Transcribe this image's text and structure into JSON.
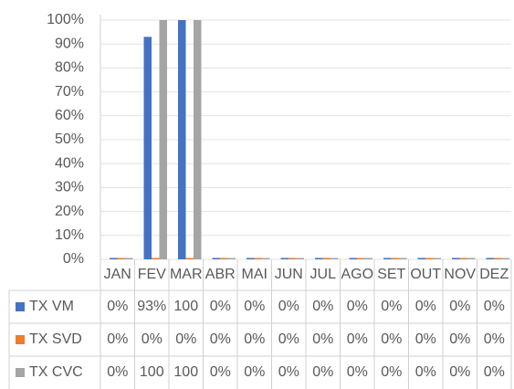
{
  "chart_data": {
    "type": "bar",
    "categories": [
      "JAN",
      "FEV",
      "MAR",
      "ABR",
      "MAI",
      "JUN",
      "JUL",
      "AGO",
      "SET",
      "OUT",
      "NOV",
      "DEZ"
    ],
    "series": [
      {
        "name": "TX VM",
        "color": "#4472c4",
        "values": [
          0,
          93,
          100,
          0,
          0,
          0,
          0,
          0,
          0,
          0,
          0,
          0
        ],
        "value_labels": [
          "0%",
          "93%",
          "100",
          "0%",
          "0%",
          "0%",
          "0%",
          "0%",
          "0%",
          "0%",
          "0%",
          "0%"
        ]
      },
      {
        "name": "TX SVD",
        "color": "#ed7d31",
        "values": [
          0,
          0,
          0,
          0,
          0,
          0,
          0,
          0,
          0,
          0,
          0,
          0
        ],
        "value_labels": [
          "0%",
          "0%",
          "0%",
          "0%",
          "0%",
          "0%",
          "0%",
          "0%",
          "0%",
          "0%",
          "0%",
          "0%"
        ]
      },
      {
        "name": "TX CVC",
        "color": "#a5a5a5",
        "values": [
          0,
          100,
          100,
          0,
          0,
          0,
          0,
          0,
          0,
          0,
          0,
          0
        ],
        "value_labels": [
          "0%",
          "100",
          "100",
          "0%",
          "0%",
          "0%",
          "0%",
          "0%",
          "0%",
          "0%",
          "0%",
          "0%"
        ]
      }
    ],
    "ylim": [
      0,
      100
    ],
    "yticks": [
      {
        "value": 0,
        "label": "0%"
      },
      {
        "value": 10,
        "label": "10%"
      },
      {
        "value": 20,
        "label": "20%"
      },
      {
        "value": 30,
        "label": "30%"
      },
      {
        "value": 40,
        "label": "40%"
      },
      {
        "value": 50,
        "label": "50%"
      },
      {
        "value": 60,
        "label": "60%"
      },
      {
        "value": 70,
        "label": "70%"
      },
      {
        "value": 80,
        "label": "80%"
      },
      {
        "value": 90,
        "label": "90%"
      },
      {
        "value": 100,
        "label": "100%"
      }
    ],
    "grid": true
  }
}
